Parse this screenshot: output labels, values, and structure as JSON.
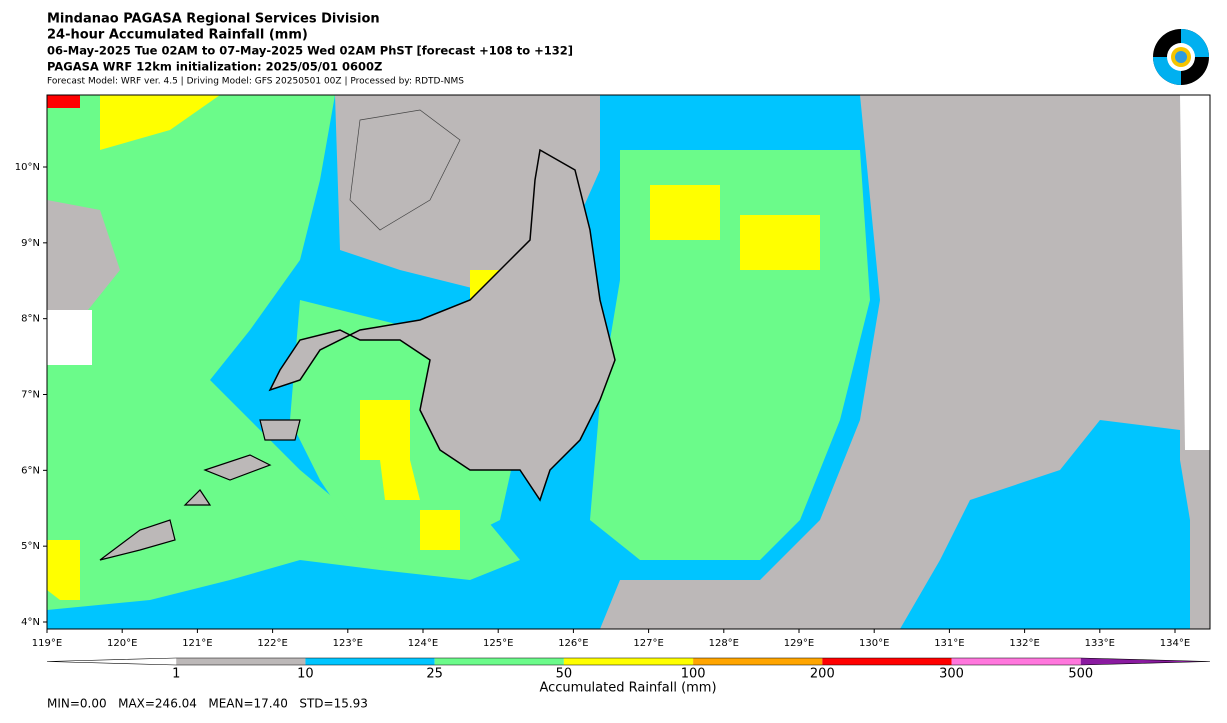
{
  "header": {
    "lines": [
      "Mindanao PAGASA Regional Services Division",
      "24-hour Accumulated Rainfall (mm)",
      "06-May-2025 Tue 02AM to 07-May-2025 Wed 02AM PhST [forecast +108 to +132]",
      "PAGASA WRF 12km initialization: 2025/05/01 0600Z",
      "Forecast Model: WRF ver. 4.5 | Driving Model: GFS 20250501 00Z | Processed by: RDTD-NMS"
    ]
  },
  "map": {
    "lat_labels": [
      "4°N",
      "5°N",
      "6°N",
      "7°N",
      "8°N",
      "9°N",
      "10°N"
    ],
    "lon_labels": [
      "119°E",
      "120°E",
      "121°E",
      "122°E",
      "123°E",
      "124°E",
      "125°E",
      "126°E",
      "127°E",
      "128°E",
      "129°E",
      "130°E",
      "131°E",
      "132°E",
      "133°E",
      "134°E"
    ]
  },
  "colorbar": {
    "title": "Accumulated Rainfall (mm)",
    "levels": [
      "1",
      "10",
      "25",
      "50",
      "100",
      "200",
      "300",
      "500"
    ],
    "colors": [
      "#ffffff",
      "#bcb8b8",
      "#00c5ff",
      "#6bfb8a",
      "#ffff00",
      "#ffa500",
      "#ff0000",
      "#ff77dd",
      "#8a1aa0"
    ]
  },
  "stats": "MIN=0.00   MAX=246.04   MEAN=17.40   STD=15.93"
}
